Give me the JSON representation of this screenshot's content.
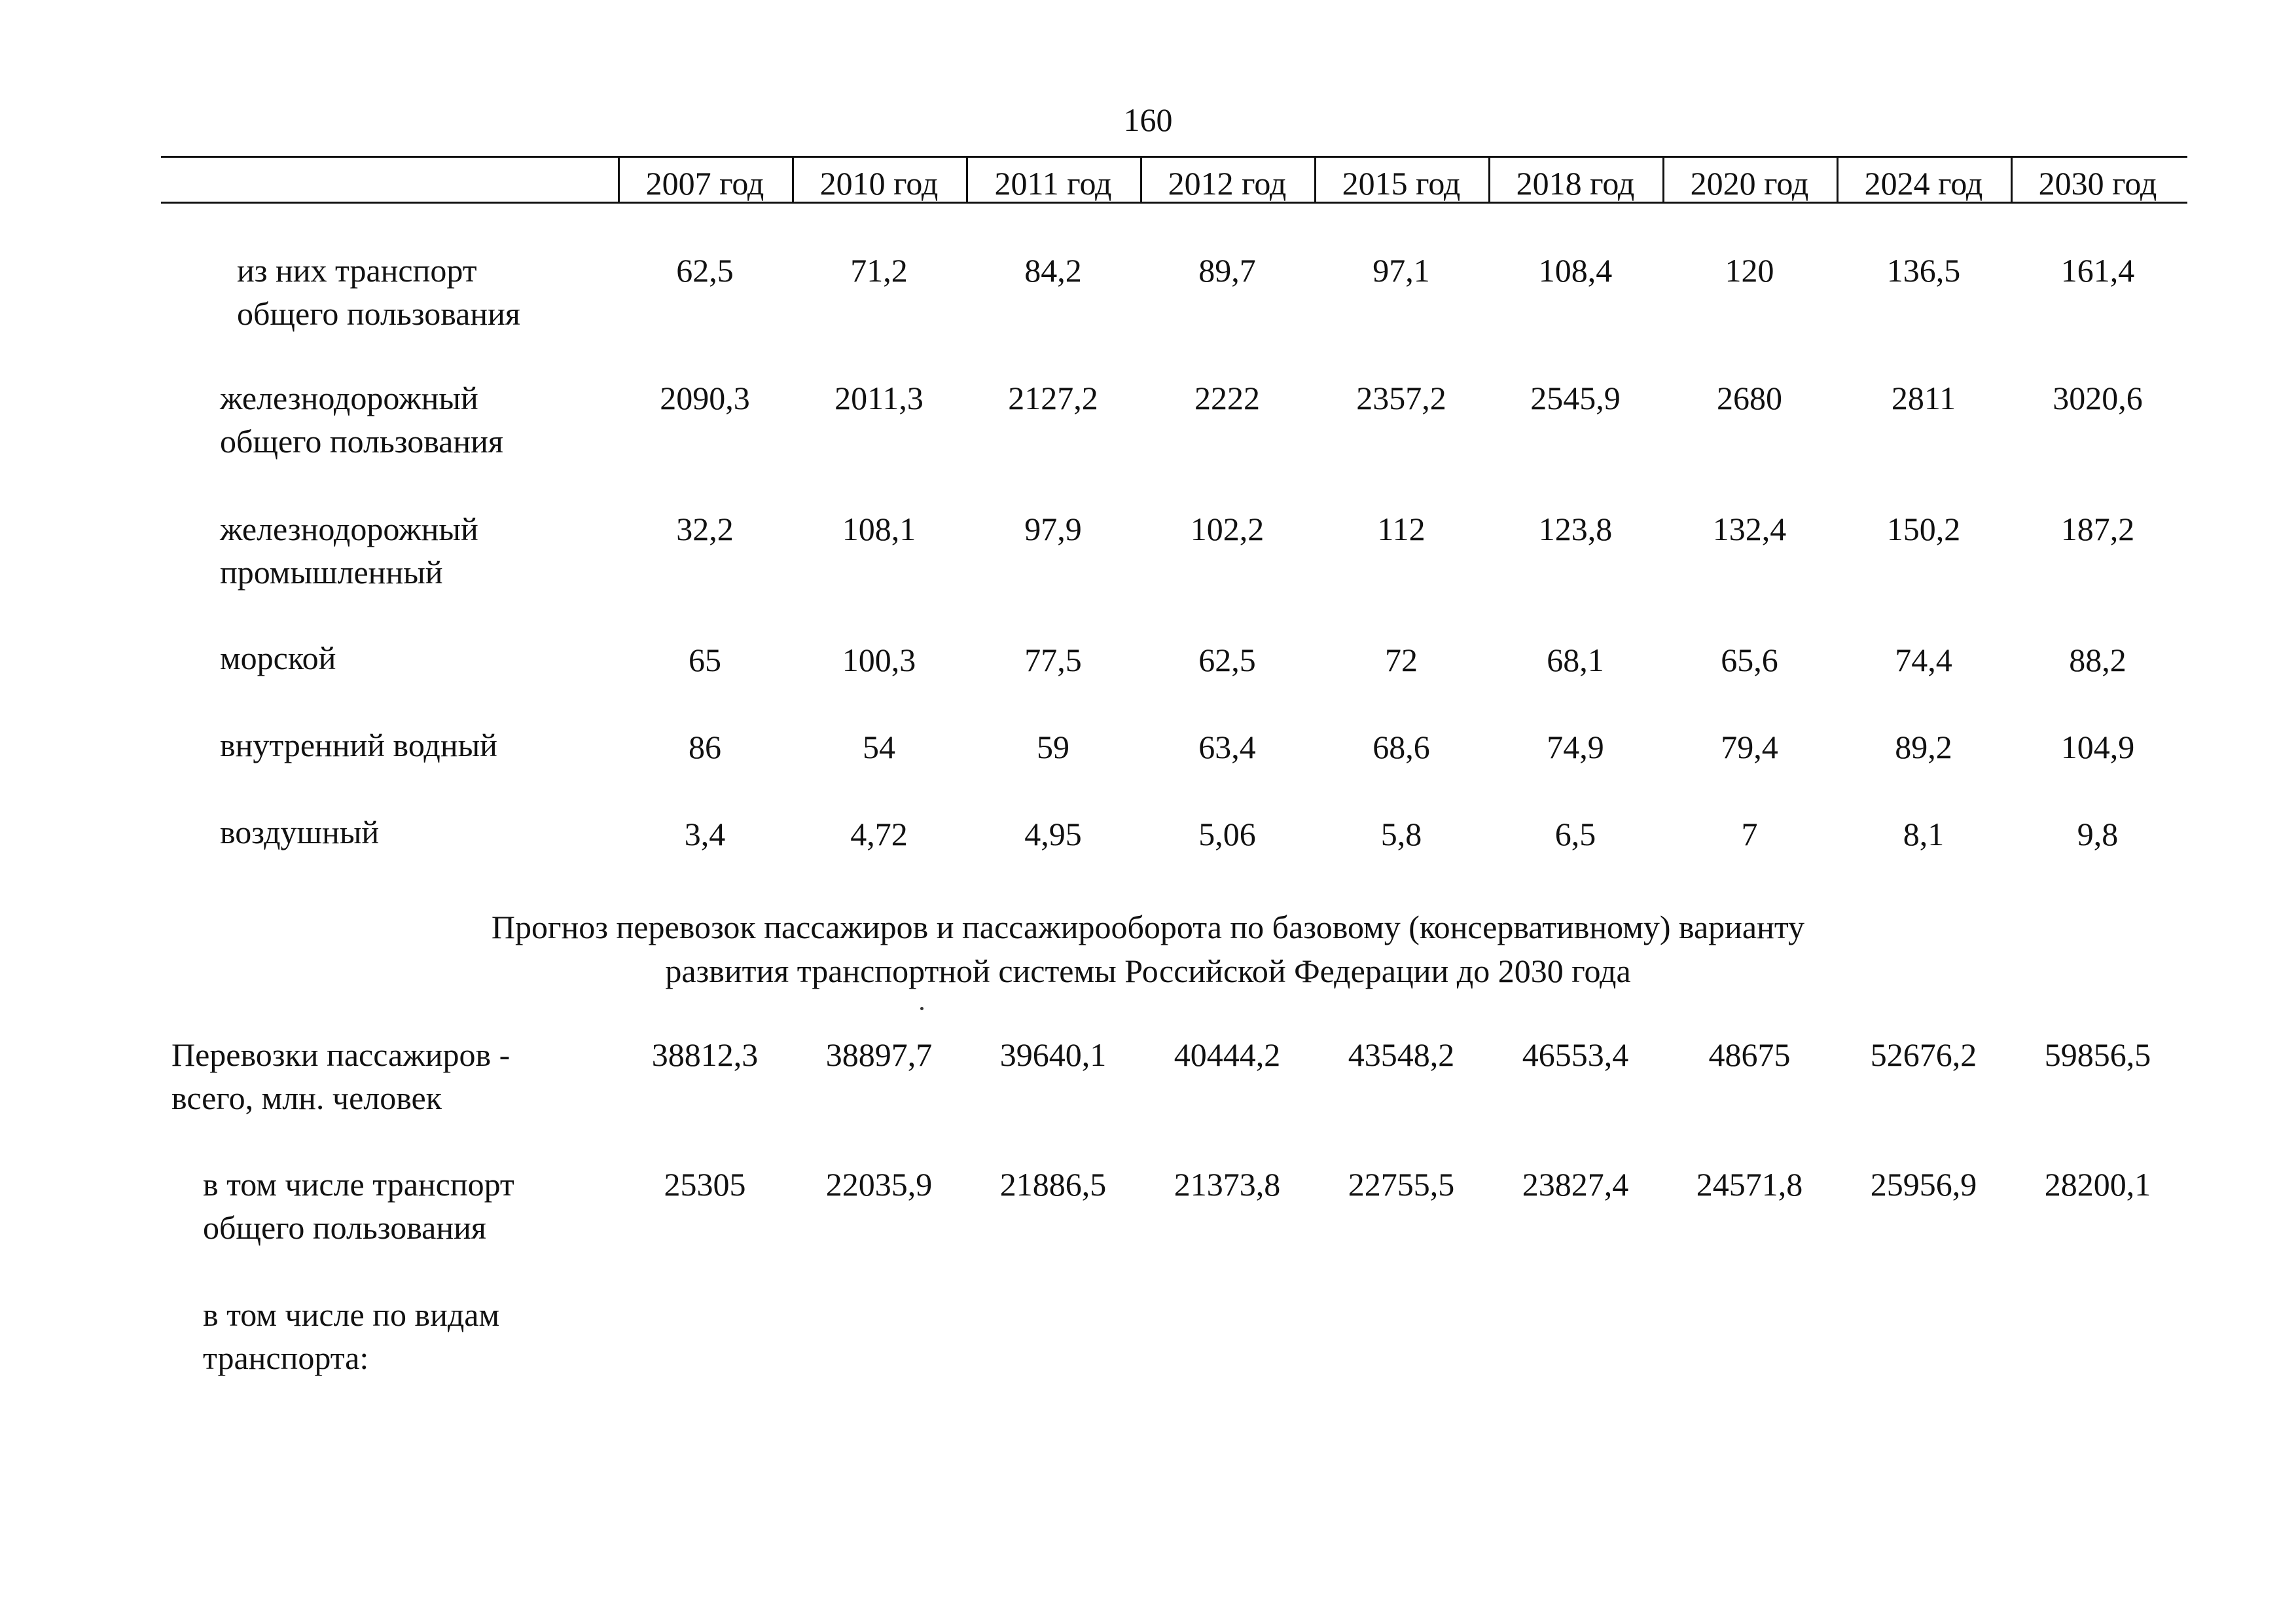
{
  "page_number": "160",
  "header": {
    "years": [
      "2007 год",
      "2010 год",
      "2011 год",
      "2012 год",
      "2015 год",
      "2018 год",
      "2020 год",
      "2024 год",
      "2030 год"
    ]
  },
  "table1": {
    "rows": [
      {
        "label_lines": [
          "из них транспорт",
          "общего пользования"
        ],
        "values": [
          "62,5",
          "71,2",
          "84,2",
          "89,7",
          "97,1",
          "108,4",
          "120",
          "136,5",
          "161,4"
        ]
      },
      {
        "label_lines": [
          "железнодорожный",
          "общего пользования"
        ],
        "values": [
          "2090,3",
          "2011,3",
          "2127,2",
          "2222",
          "2357,2",
          "2545,9",
          "2680",
          "2811",
          "3020,6"
        ]
      },
      {
        "label_lines": [
          "железнодорожный",
          "промышленный"
        ],
        "values": [
          "32,2",
          "108,1",
          "97,9",
          "102,2",
          "112",
          "123,8",
          "132,4",
          "150,2",
          "187,2"
        ]
      },
      {
        "label_lines": [
          "морской"
        ],
        "values": [
          "65",
          "100,3",
          "77,5",
          "62,5",
          "72",
          "68,1",
          "65,6",
          "74,4",
          "88,2"
        ]
      },
      {
        "label_lines": [
          "внутренний водный"
        ],
        "values": [
          "86",
          "54",
          "59",
          "63,4",
          "68,6",
          "74,9",
          "79,4",
          "89,2",
          "104,9"
        ]
      },
      {
        "label_lines": [
          "воздушный"
        ],
        "values": [
          "3,4",
          "4,72",
          "4,95",
          "5,06",
          "5,8",
          "6,5",
          "7",
          "8,1",
          "9,8"
        ]
      }
    ]
  },
  "section_title": {
    "line1": "Прогноз перевозок пассажиров и пассажирооборота по базовому (консервативному) варианту",
    "line2": "развития транспортной системы Российской Федерации до 2030 года"
  },
  "table2": {
    "rows": [
      {
        "label_lines": [
          "Перевозки пассажиров -",
          "всего, млн. человек"
        ],
        "values": [
          "38812,3",
          "38897,7",
          "39640,1",
          "40444,2",
          "43548,2",
          "46553,4",
          "48675",
          "52676,2",
          "59856,5"
        ]
      },
      {
        "label_lines": [
          "в том числе транспорт",
          "общего пользования"
        ],
        "values": [
          "25305",
          "22035,9",
          "21886,5",
          "21373,8",
          "22755,5",
          "23827,4",
          "24571,8",
          "25956,9",
          "28200,1"
        ]
      },
      {
        "label_lines": [
          "в том числе по видам",
          "транспорта:"
        ],
        "values": []
      }
    ]
  }
}
